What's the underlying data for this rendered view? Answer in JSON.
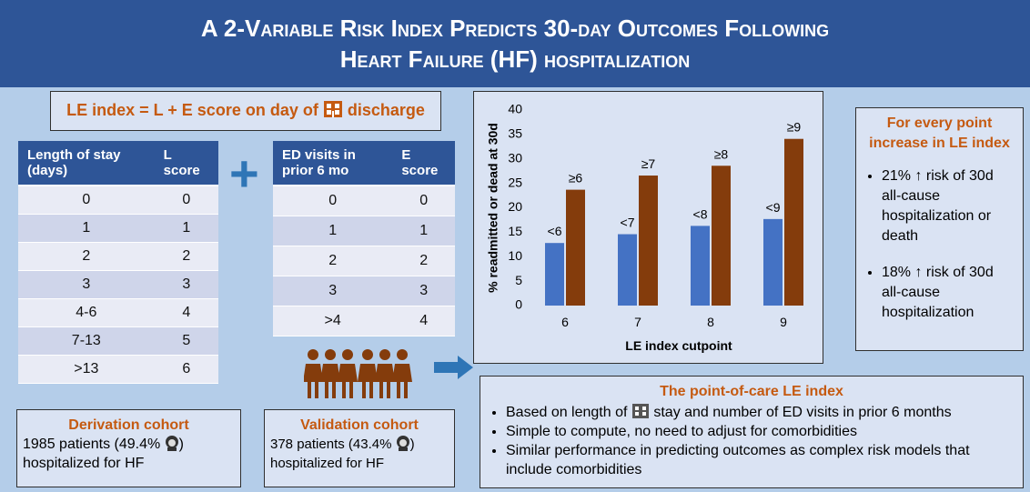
{
  "header": {
    "title_lines": [
      "A 2-Variable Risk Index Predicts 30-day Outcomes Following",
      "Heart Failure (HF) hospitalization"
    ]
  },
  "formula": {
    "before_icon": "LE index = L + E score on day of",
    "after_icon": "discharge"
  },
  "plus": "+",
  "l_table": {
    "columns": [
      "Length of stay (days)",
      "L score"
    ],
    "rows": [
      [
        "0",
        "0"
      ],
      [
        "1",
        "1"
      ],
      [
        "2",
        "2"
      ],
      [
        "3",
        "3"
      ],
      [
        "4-6",
        "4"
      ],
      [
        "7-13",
        "5"
      ],
      [
        ">13",
        "6"
      ]
    ]
  },
  "e_table": {
    "columns": [
      "ED visits in prior  6 mo",
      "E score"
    ],
    "rows": [
      [
        "0",
        "0"
      ],
      [
        "1",
        "1"
      ],
      [
        "2",
        "2"
      ],
      [
        "3",
        "3"
      ],
      [
        ">4",
        "4"
      ]
    ]
  },
  "derivation": {
    "title": "Derivation cohort",
    "line1_before_icon": "1985 patients (49.4%",
    "line1_after_icon": ")",
    "line2": "hospitalized for HF"
  },
  "validation": {
    "title": "Validation cohort",
    "line1_before_icon": "378 patients (43.4%",
    "line1_after_icon": ")",
    "line2": "hospitalized for HF"
  },
  "chart_data": {
    "type": "bar",
    "y_label": "% readmitted or dead at 30d",
    "x_label": "LE index cutpoint",
    "categories": [
      "6",
      "7",
      "8",
      "9"
    ],
    "series": [
      {
        "color": "#4472c4",
        "values": [
          12.8,
          14.6,
          16.3,
          17.7
        ],
        "labels": [
          "<6",
          "<7",
          "<8",
          "<9"
        ]
      },
      {
        "color": "#843c0c",
        "values": [
          23.7,
          26.6,
          28.6,
          34.1
        ],
        "labels": [
          "≥6",
          "≥7",
          "≥8",
          "≥9"
        ]
      }
    ],
    "ylim": [
      0,
      40
    ],
    "yticks": [
      0,
      5,
      10,
      15,
      20,
      25,
      30,
      35,
      40
    ],
    "grid": false
  },
  "summary": {
    "title": "For every point increase in LE index",
    "bullets": [
      "21% ↑ risk of  30d all-cause hospitalization or death",
      "18%  ↑ risk of 30d all-cause hospitalization"
    ]
  },
  "point_of_care": {
    "title": "The point-of-care LE index",
    "bullet1_before_icon": "Based on length of",
    "bullet1_after_icon": "stay and number of ED visits in prior 6 months",
    "bullets": [
      "Simple to compute, no need to adjust for comorbidities",
      "Similar performance in predicting outcomes as complex risk models that include comorbidities"
    ]
  }
}
